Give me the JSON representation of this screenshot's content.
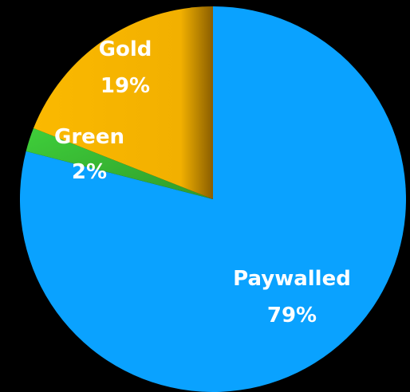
{
  "chart_data": {
    "type": "pie",
    "slices": [
      {
        "label": "Paywalled",
        "value": 79,
        "display": "79%",
        "color": "#0aa2ff"
      },
      {
        "label": "Green",
        "value": 2,
        "display": "2%",
        "color": "#3fcf3a"
      },
      {
        "label": "Gold",
        "value": 19,
        "display": "19%",
        "color": "#fbb900"
      }
    ],
    "start_angle": "12 o'clock",
    "direction": "clockwise",
    "title": "",
    "legend": "none",
    "background": "#000000"
  }
}
